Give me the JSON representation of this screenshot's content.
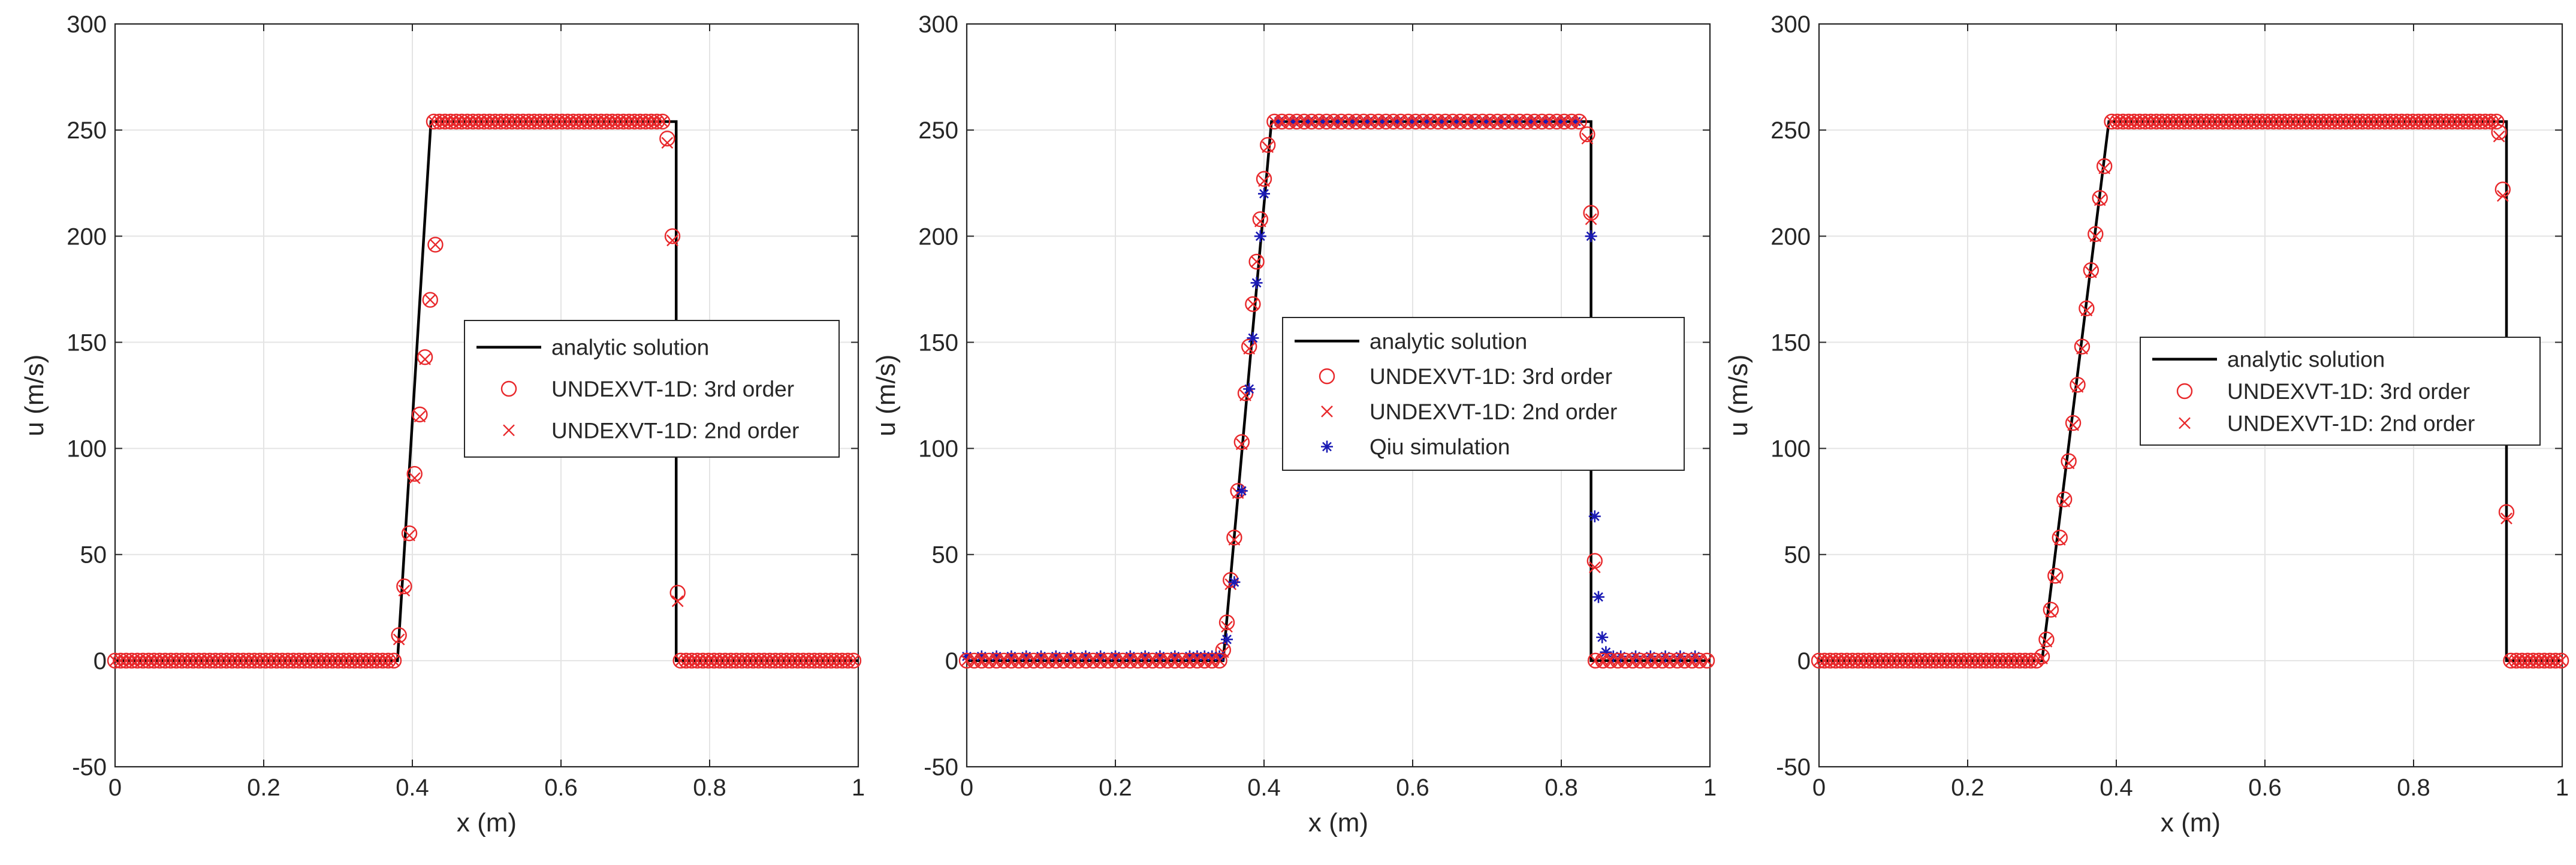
{
  "figure": {
    "description_free": true
  },
  "colors": {
    "analytic": "#000000",
    "third_order": "#e8282b",
    "second_order": "#e8282b",
    "qiu": "#1a1ab4",
    "grid": "#e4e4e4",
    "axis": "#262626"
  },
  "chart_data": [
    {
      "type": "line",
      "xlabel": "x (m)",
      "ylabel": "u (m/s)",
      "xlim": [
        0,
        1
      ],
      "ylim": [
        -50,
        300
      ],
      "xticks": [
        0,
        0.2,
        0.4,
        0.6,
        0.8,
        1
      ],
      "xtick_labels": [
        "0",
        "0.2",
        "0.4",
        "0.6",
        "0.8",
        "1"
      ],
      "yticks": [
        -50,
        0,
        50,
        100,
        150,
        200,
        250,
        300
      ],
      "ytick_labels": [
        "-50",
        "0",
        "50",
        "100",
        "150",
        "200",
        "250",
        "300"
      ],
      "grid": true,
      "legend_position": "center",
      "series": [
        {
          "name": "analytic solution",
          "style": "line",
          "x": [
            0,
            0.38,
            0.425,
            0.755,
            0.755,
            1
          ],
          "y": [
            0,
            0,
            254,
            254,
            0,
            0
          ]
        },
        {
          "name": "UNDEXVT-1D: 3rd order",
          "style": "circle",
          "x": [
            0.382,
            0.389,
            0.396,
            0.403,
            0.41,
            0.417,
            0.424,
            0.431,
            0.743,
            0.75,
            0.757
          ],
          "y": [
            12,
            35,
            60,
            88,
            116,
            143,
            170,
            196,
            246,
            200,
            32
          ]
        },
        {
          "name": "UNDEXVT-1D: 2nd order",
          "style": "cross",
          "x": [
            0.382,
            0.389,
            0.396,
            0.403,
            0.41,
            0.417,
            0.424,
            0.431,
            0.743,
            0.75,
            0.757
          ],
          "y": [
            10,
            33,
            59,
            86,
            115,
            142,
            170,
            196,
            244,
            198,
            28
          ]
        }
      ]
    },
    {
      "type": "line",
      "xlabel": "x (m)",
      "ylabel": "u (m/s)",
      "xlim": [
        0,
        1
      ],
      "ylim": [
        -50,
        300
      ],
      "xticks": [
        0,
        0.2,
        0.4,
        0.6,
        0.8,
        1
      ],
      "xtick_labels": [
        "0",
        "0.2",
        "0.4",
        "0.6",
        "0.8",
        "1"
      ],
      "yticks": [
        -50,
        0,
        50,
        100,
        150,
        200,
        250,
        300
      ],
      "ytick_labels": [
        "-50",
        "0",
        "50",
        "100",
        "150",
        "200",
        "250",
        "300"
      ],
      "grid": true,
      "legend_position": "center-right",
      "series": [
        {
          "name": "analytic solution",
          "style": "line",
          "x": [
            0,
            0.345,
            0.41,
            0.84,
            0.84,
            1
          ],
          "y": [
            0,
            0,
            254,
            254,
            0,
            0
          ]
        },
        {
          "name": "UNDEXVT-1D: 3rd order",
          "style": "circle",
          "x": [
            0.345,
            0.35,
            0.355,
            0.36,
            0.365,
            0.37,
            0.375,
            0.38,
            0.385,
            0.39,
            0.395,
            0.4,
            0.405,
            0.835,
            0.84,
            0.845
          ],
          "y": [
            5,
            18,
            38,
            58,
            80,
            103,
            126,
            148,
            168,
            188,
            208,
            227,
            243,
            248,
            211,
            47
          ]
        },
        {
          "name": "UNDEXVT-1D: 2nd order",
          "style": "cross",
          "x": [
            0.345,
            0.35,
            0.355,
            0.36,
            0.365,
            0.37,
            0.375,
            0.38,
            0.385,
            0.39,
            0.395,
            0.4,
            0.405,
            0.835,
            0.84,
            0.845
          ],
          "y": [
            4,
            16,
            36,
            57,
            79,
            102,
            125,
            147,
            168,
            188,
            207,
            226,
            242,
            246,
            208,
            44
          ]
        },
        {
          "name": "Qiu simulation",
          "style": "star",
          "x": [
            0,
            0.02,
            0.04,
            0.06,
            0.08,
            0.1,
            0.12,
            0.14,
            0.16,
            0.18,
            0.2,
            0.22,
            0.24,
            0.26,
            0.28,
            0.3,
            0.31,
            0.32,
            0.33,
            0.34,
            0.35,
            0.36,
            0.37,
            0.38,
            0.385,
            0.39,
            0.395,
            0.4,
            0.42,
            0.44,
            0.46,
            0.48,
            0.5,
            0.52,
            0.54,
            0.56,
            0.58,
            0.6,
            0.62,
            0.64,
            0.66,
            0.68,
            0.7,
            0.72,
            0.74,
            0.76,
            0.78,
            0.8,
            0.82,
            0.84,
            0.845,
            0.85,
            0.855,
            0.86,
            0.87,
            0.88,
            0.9,
            0.92,
            0.94,
            0.96,
            0.98
          ],
          "y": [
            2,
            2,
            2,
            2,
            2,
            2,
            2,
            2,
            2,
            2,
            2,
            2,
            2,
            2,
            2,
            2,
            2,
            2,
            2,
            2,
            10,
            37,
            80,
            128,
            152,
            178,
            200,
            220,
            254,
            254,
            254,
            254,
            254,
            254,
            254,
            254,
            254,
            254,
            254,
            254,
            254,
            254,
            254,
            254,
            254,
            254,
            254,
            254,
            254,
            200,
            68,
            30,
            11,
            4,
            2,
            2,
            2,
            2,
            2,
            2,
            2
          ]
        }
      ]
    },
    {
      "type": "line",
      "xlabel": "x (m)",
      "ylabel": "u (m/s)",
      "xlim": [
        0,
        1
      ],
      "ylim": [
        -50,
        300
      ],
      "xticks": [
        0,
        0.2,
        0.4,
        0.6,
        0.8,
        1
      ],
      "xtick_labels": [
        "0",
        "0.2",
        "0.4",
        "0.6",
        "0.8",
        "1"
      ],
      "yticks": [
        -50,
        0,
        50,
        100,
        150,
        200,
        250,
        300
      ],
      "ytick_labels": [
        "-50",
        "0",
        "50",
        "100",
        "150",
        "200",
        "250",
        "300"
      ],
      "grid": true,
      "legend_position": "center-right",
      "series": [
        {
          "name": "analytic solution",
          "style": "line",
          "x": [
            0,
            0.3,
            0.39,
            0.925,
            0.925,
            1
          ],
          "y": [
            0,
            0,
            254,
            254,
            0,
            0
          ]
        },
        {
          "name": "UNDEXVT-1D: 3rd order",
          "style": "circle",
          "x": [
            0.3,
            0.306,
            0.312,
            0.318,
            0.324,
            0.33,
            0.336,
            0.342,
            0.348,
            0.354,
            0.36,
            0.366,
            0.372,
            0.378,
            0.384,
            0.915,
            0.92,
            0.925
          ],
          "y": [
            2,
            10,
            24,
            40,
            58,
            76,
            94,
            112,
            130,
            148,
            166,
            184,
            201,
            218,
            233,
            249,
            222,
            70
          ]
        },
        {
          "name": "UNDEXVT-1D: 2nd order",
          "style": "cross",
          "x": [
            0.3,
            0.306,
            0.312,
            0.318,
            0.324,
            0.33,
            0.336,
            0.342,
            0.348,
            0.354,
            0.36,
            0.366,
            0.372,
            0.378,
            0.384,
            0.915,
            0.92,
            0.925
          ],
          "y": [
            1,
            9,
            23,
            39,
            57,
            75,
            93,
            111,
            129,
            147,
            165,
            183,
            200,
            217,
            232,
            247,
            219,
            67
          ]
        }
      ]
    }
  ]
}
